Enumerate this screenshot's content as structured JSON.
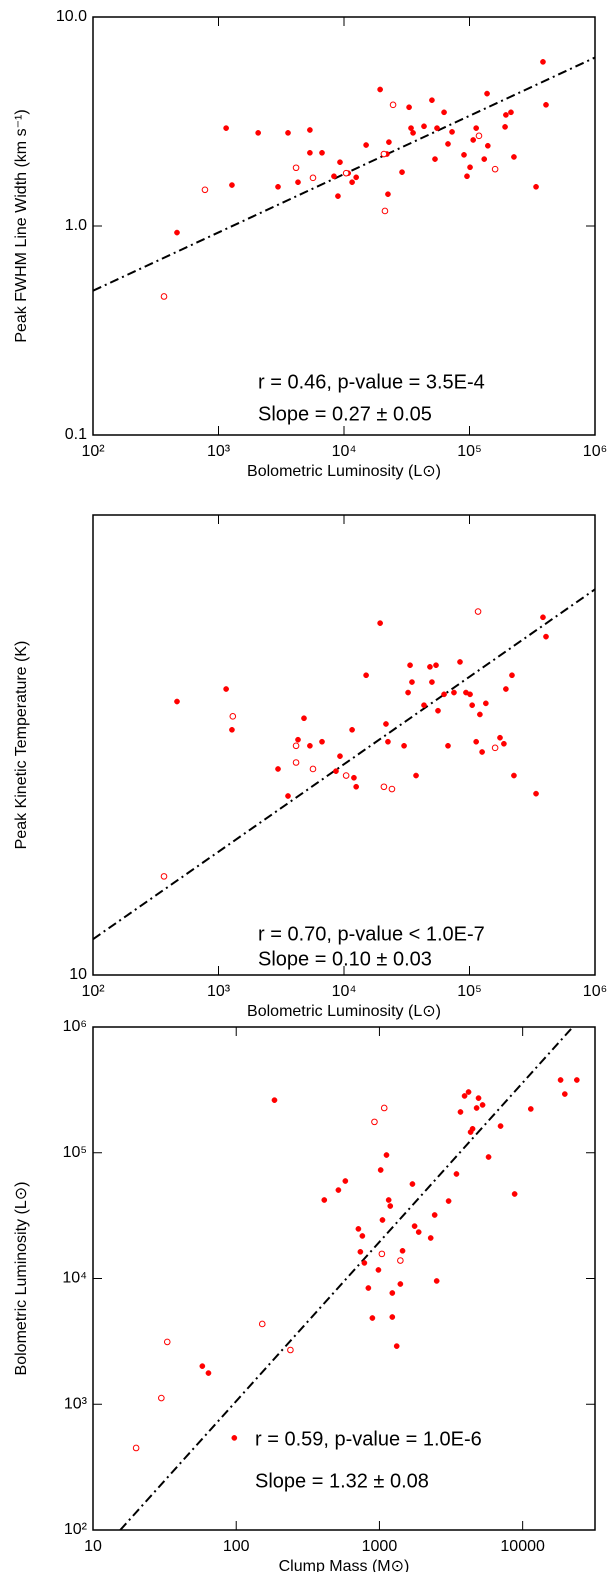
{
  "chart_data": [
    {
      "type": "scatter",
      "xscale": "log",
      "yscale": "log",
      "xlabel": "Bolometric Luminosity (L⊙)",
      "ylabel": "Peak FWHM Line Width (km s⁻¹)",
      "xlim": [
        100,
        1000000
      ],
      "ylim": [
        0.1,
        10
      ],
      "xticks": [
        {
          "value": 100,
          "label": "10²"
        },
        {
          "value": 1000,
          "label": "10³"
        },
        {
          "value": 10000,
          "label": "10⁴"
        },
        {
          "value": 100000,
          "label": "10⁵"
        },
        {
          "value": 1000000,
          "label": "10⁶"
        }
      ],
      "yticks": [
        0.1,
        {
          "value": 1,
          "label": "1.0"
        },
        {
          "value": 10,
          "label": "10.0"
        }
      ],
      "series": [
        {
          "marker": "filled",
          "color": "#ff0000",
          "x": [
            467,
            1280,
            1150,
            2070,
            2980,
            3580,
            4300,
            5350,
            5350,
            6680,
            8320,
            8950,
            9290,
            10800,
            11600,
            12500,
            15000,
            19400,
            22000,
            22400,
            22800,
            29000,
            33000,
            34200,
            35500,
            43400,
            50200,
            53100,
            55100,
            62700,
            67400,
            72600,
            90400,
            95500,
            101000,
            107000,
            113000,
            131000,
            138000,
            140000,
            192000,
            195000,
            214000,
            226000,
            339000,
            385000,
            407000
          ],
          "y": [
            0.93,
            1.57,
            2.94,
            2.79,
            1.54,
            2.79,
            1.62,
            2.88,
            2.24,
            2.24,
            1.73,
            1.39,
            2.02,
            1.79,
            1.62,
            1.71,
            2.44,
            4.5,
            2.21,
            1.42,
            2.52,
            1.81,
            3.7,
            2.94,
            2.79,
            3.0,
            4.0,
            2.09,
            2.94,
            3.5,
            2.47,
            2.82,
            2.19,
            1.73,
            1.91,
            2.58,
            2.94,
            2.09,
            4.3,
            2.42,
            2.98,
            3.4,
            3.5,
            2.14,
            1.54,
            6.1,
            3.8
          ]
        },
        {
          "marker": "open",
          "color": "#ff0000",
          "x": [
            368,
            780,
            4150,
            5660,
            10400,
            20800,
            21200,
            24600,
            119000,
            160000
          ],
          "y": [
            0.46,
            1.49,
            1.9,
            1.7,
            1.79,
            2.21,
            1.18,
            3.8,
            2.7,
            1.87
          ]
        }
      ],
      "fit": {
        "color": "#000000",
        "x": [
          100,
          1000000
        ],
        "y": [
          0.49,
          6.4
        ]
      },
      "annotations": [
        "r = 0.46, p-value = 3.5E-4",
        "Slope = 0.27 ± 0.05"
      ]
    },
    {
      "type": "scatter",
      "xscale": "log",
      "yscale": "log",
      "xlabel": "Bolometric Luminosity (L⊙)",
      "ylabel": "Peak Kinetic Temperature (K)",
      "xlim": [
        100,
        1000000
      ],
      "ylim": [
        10,
        34
      ],
      "xticks": [
        {
          "value": 100,
          "label": "10²"
        },
        {
          "value": 1000,
          "label": "10³"
        },
        {
          "value": 10000,
          "label": "10⁴"
        },
        {
          "value": 100000,
          "label": "10⁵"
        },
        {
          "value": 1000000,
          "label": "10⁶"
        }
      ],
      "yticks": [
        10
      ],
      "series": [
        {
          "marker": "filled",
          "color": "#ff0000",
          "x": [
            467,
            1150,
            1280,
            2980,
            3580,
            4300,
            4800,
            5350,
            6680,
            8630,
            9290,
            11600,
            12000,
            12500,
            15000,
            19400,
            21600,
            22400,
            30100,
            32400,
            33600,
            34800,
            37500,
            43400,
            48400,
            50200,
            54100,
            56100,
            62700,
            67400,
            75200,
            84000,
            93700,
            101000,
            105000,
            113000,
            121000,
            126000,
            135000,
            175000,
            188000,
            195000,
            218000,
            226000,
            339000,
            385000,
            407000
          ],
          "y": [
            20.7,
            21.4,
            19.2,
            17.3,
            16.1,
            18.7,
            19.8,
            18.4,
            18.6,
            17.2,
            17.9,
            19.2,
            16.9,
            16.5,
            22.2,
            25.5,
            19.5,
            18.6,
            18.4,
            21.2,
            22.8,
            21.8,
            17.0,
            20.5,
            22.7,
            21.8,
            22.8,
            20.2,
            21.1,
            18.4,
            21.2,
            23.0,
            21.2,
            21.1,
            20.5,
            18.6,
            20.0,
            18.1,
            20.6,
            18.8,
            18.5,
            21.4,
            22.2,
            17.0,
            16.2,
            25.9,
            24.6
          ]
        },
        {
          "marker": "open",
          "color": "#ff0000",
          "x": [
            368,
            1300,
            4150,
            4150,
            5660,
            10400,
            20800,
            24100,
            117000,
            160000
          ],
          "y": [
            13.0,
            19.9,
            18.4,
            17.6,
            17.3,
            17.0,
            16.5,
            16.4,
            26.3,
            18.3
          ]
        }
      ],
      "fit": {
        "color": "#000000",
        "x": [
          100,
          1000000
        ],
        "y": [
          11.0,
          27.9
        ]
      },
      "annotations": [
        "r = 0.70, p-value < 1.0E-7",
        "Slope = 0.10 ± 0.03"
      ]
    },
    {
      "type": "scatter",
      "xscale": "log",
      "yscale": "log",
      "xlabel": "Clump Mass (M⊙)",
      "ylabel": "Bolometric Luminosity (L⊙)",
      "xlim": [
        10,
        32000
      ],
      "ylim": [
        100,
        1000000
      ],
      "xticks": [
        10,
        100,
        1000,
        10000
      ],
      "yticks": [
        {
          "value": 100,
          "label": "10²"
        },
        {
          "value": 1000,
          "label": "10³"
        },
        {
          "value": 10000,
          "label": "10⁴"
        },
        {
          "value": 100000,
          "label": "10⁵"
        },
        {
          "value": 1000000,
          "label": "10⁶"
        }
      ],
      "series": [
        {
          "marker": "filled",
          "color": "#ff0000",
          "x": [
            58,
            64,
            97,
            185,
            412,
            517,
            578,
            713,
            736,
            760,
            785,
            837,
            893,
            984,
            1020,
            1050,
            1120,
            1160,
            1190,
            1230,
            1230,
            1320,
            1400,
            1450,
            1700,
            1760,
            1880,
            2280,
            2430,
            2510,
            3040,
            3450,
            3680,
            3930,
            4190,
            4330,
            4470,
            4770,
            4920,
            5250,
            5780,
            7010,
            8790,
            11400,
            18400,
            19700,
            23900
          ],
          "y": [
            2010,
            1770,
            540,
            262000,
            42100,
            50500,
            59600,
            24800,
            16300,
            21800,
            13300,
            8400,
            4850,
            11700,
            72900,
            29200,
            95900,
            42100,
            37700,
            7670,
            4940,
            2900,
            9040,
            16600,
            56400,
            26100,
            23400,
            21000,
            32000,
            9560,
            41300,
            67800,
            211000,
            283000,
            304000,
            146000,
            155000,
            227000,
            272000,
            240000,
            92500,
            163000,
            47000,
            223000,
            379000,
            293000,
            379000
          ]
        },
        {
          "marker": "open",
          "color": "#ff0000",
          "x": [
            20,
            30,
            33,
            152,
            239,
            923,
            1080,
            1040,
            1400
          ],
          "y": [
            449,
            1120,
            3130,
            4350,
            2700,
            176000,
            227000,
            15700,
            13900
          ]
        }
      ],
      "fit": {
        "color": "#000000",
        "x": [
          15.5,
          22400
        ],
        "y": [
          100,
          1000000
        ]
      },
      "annotations": [
        "r = 0.59, p-value = 1.0E-6",
        "Slope = 1.32 ± 0.08"
      ]
    }
  ]
}
